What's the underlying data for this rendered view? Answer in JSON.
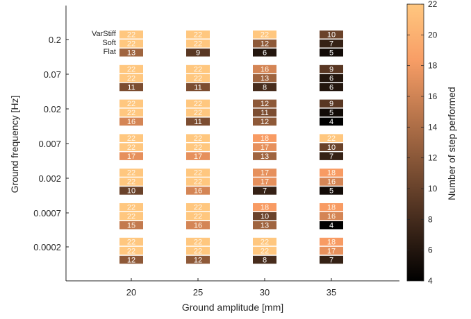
{
  "chart_data": {
    "type": "heatmap",
    "xlabel": "Ground amplitude [mm]",
    "ylabel": "Ground frequency [Hz]",
    "x_ticks": [
      "20",
      "25",
      "30",
      "35"
    ],
    "y_ticks": [
      "0.2",
      "0.07",
      "0.02",
      "0.007",
      "0.002",
      "0.0007",
      "0.0002"
    ],
    "row_labels": [
      "VarStiff",
      "Soft",
      "Flat"
    ],
    "colorbar": {
      "label": "Number of step performed",
      "min": 4,
      "max": 22,
      "ticks": [
        4,
        6,
        8,
        10,
        12,
        14,
        16,
        18,
        20,
        22
      ],
      "colormap": "copper"
    },
    "grid": false,
    "cells": [
      {
        "frequency": "0.2",
        "amplitude": "20",
        "values": [
          22,
          22,
          13
        ]
      },
      {
        "frequency": "0.2",
        "amplitude": "25",
        "values": [
          22,
          22,
          9
        ]
      },
      {
        "frequency": "0.2",
        "amplitude": "30",
        "values": [
          22,
          12,
          6
        ]
      },
      {
        "frequency": "0.2",
        "amplitude": "35",
        "values": [
          10,
          7,
          5
        ]
      },
      {
        "frequency": "0.07",
        "amplitude": "20",
        "values": [
          22,
          22,
          11
        ]
      },
      {
        "frequency": "0.07",
        "amplitude": "25",
        "values": [
          22,
          22,
          11
        ]
      },
      {
        "frequency": "0.07",
        "amplitude": "30",
        "values": [
          16,
          13,
          8
        ]
      },
      {
        "frequency": "0.07",
        "amplitude": "35",
        "values": [
          9,
          6,
          6
        ]
      },
      {
        "frequency": "0.02",
        "amplitude": "20",
        "values": [
          22,
          22,
          16
        ]
      },
      {
        "frequency": "0.02",
        "amplitude": "25",
        "values": [
          22,
          22,
          11
        ]
      },
      {
        "frequency": "0.02",
        "amplitude": "30",
        "values": [
          12,
          11,
          12
        ]
      },
      {
        "frequency": "0.02",
        "amplitude": "35",
        "values": [
          9,
          5,
          4
        ]
      },
      {
        "frequency": "0.007",
        "amplitude": "20",
        "values": [
          22,
          22,
          17
        ]
      },
      {
        "frequency": "0.007",
        "amplitude": "25",
        "values": [
          22,
          22,
          17
        ]
      },
      {
        "frequency": "0.007",
        "amplitude": "30",
        "values": [
          18,
          17,
          13
        ]
      },
      {
        "frequency": "0.007",
        "amplitude": "35",
        "values": [
          22,
          10,
          7
        ]
      },
      {
        "frequency": "0.002",
        "amplitude": "20",
        "values": [
          22,
          22,
          10
        ]
      },
      {
        "frequency": "0.002",
        "amplitude": "25",
        "values": [
          22,
          22,
          16
        ]
      },
      {
        "frequency": "0.002",
        "amplitude": "30",
        "values": [
          17,
          17,
          7
        ]
      },
      {
        "frequency": "0.002",
        "amplitude": "35",
        "values": [
          18,
          16,
          5
        ]
      },
      {
        "frequency": "0.0007",
        "amplitude": "20",
        "values": [
          22,
          22,
          15
        ]
      },
      {
        "frequency": "0.0007",
        "amplitude": "25",
        "values": [
          22,
          22,
          16
        ]
      },
      {
        "frequency": "0.0007",
        "amplitude": "30",
        "values": [
          18,
          10,
          13
        ]
      },
      {
        "frequency": "0.0007",
        "amplitude": "35",
        "values": [
          18,
          16,
          4
        ]
      },
      {
        "frequency": "0.0002",
        "amplitude": "20",
        "values": [
          22,
          22,
          12
        ]
      },
      {
        "frequency": "0.0002",
        "amplitude": "25",
        "values": [
          22,
          22,
          12
        ]
      },
      {
        "frequency": "0.0002",
        "amplitude": "30",
        "values": [
          22,
          22,
          8
        ]
      },
      {
        "frequency": "0.0002",
        "amplitude": "35",
        "values": [
          18,
          17,
          7
        ]
      }
    ]
  }
}
